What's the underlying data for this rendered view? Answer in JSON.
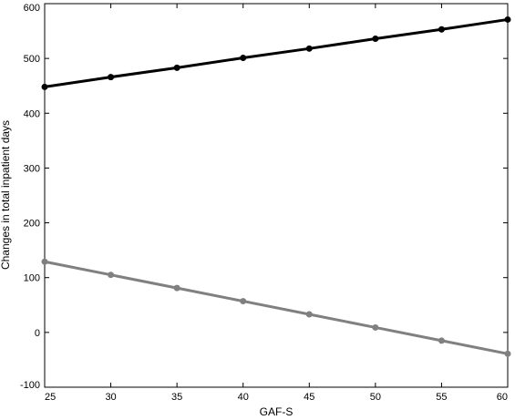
{
  "chart_data": {
    "type": "line",
    "title": "",
    "xlabel": "GAF-S",
    "ylabel": "Changes in total inpatient days",
    "xlim": [
      25,
      60
    ],
    "ylim": [
      -100,
      600
    ],
    "x_ticks": [
      25,
      30,
      35,
      40,
      45,
      50,
      55,
      60
    ],
    "y_ticks": [
      -100,
      0,
      100,
      200,
      300,
      400,
      500,
      600
    ],
    "grid": false,
    "x": [
      25,
      30,
      35,
      40,
      45,
      50,
      55,
      60
    ],
    "series": [
      {
        "color": "#000000",
        "values": [
          448,
          466,
          483,
          501,
          518,
          536,
          553,
          571
        ]
      },
      {
        "color": "#808080",
        "values": [
          129,
          105,
          81,
          57,
          33,
          9,
          -15,
          -39
        ]
      }
    ]
  }
}
